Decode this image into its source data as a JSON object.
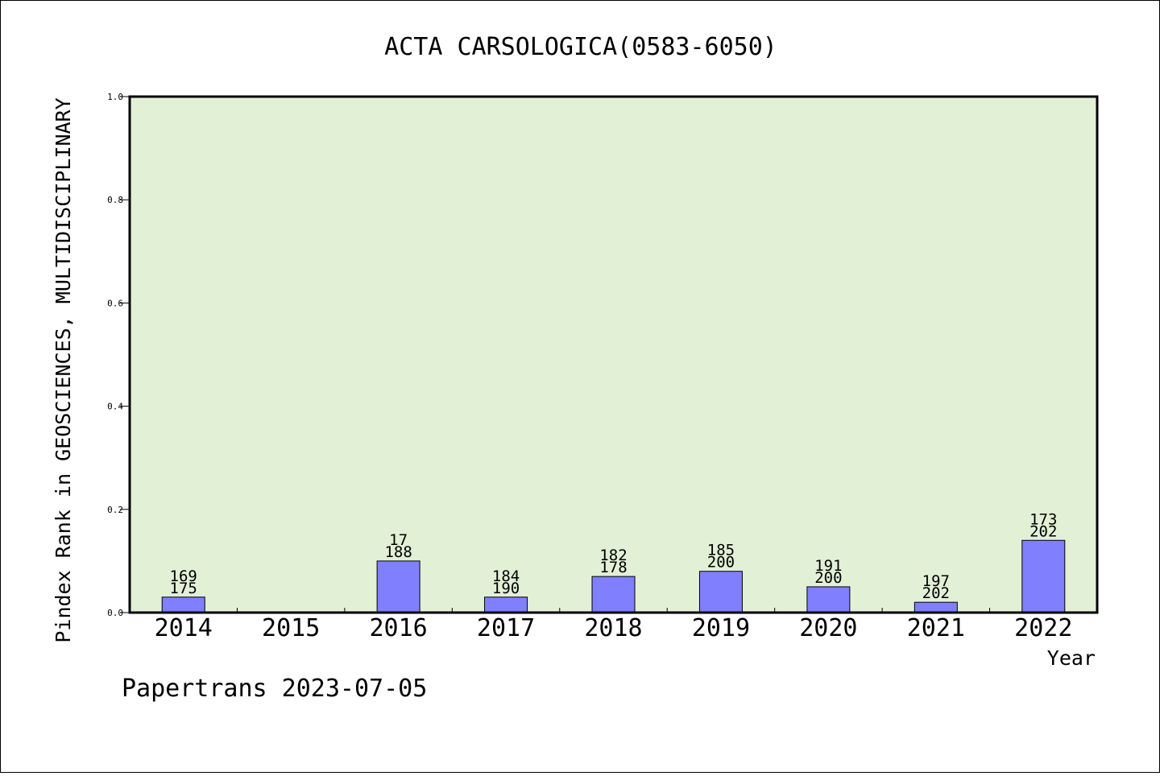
{
  "chart_data": {
    "type": "bar",
    "title": "ACTA CARSOLOGICA(0583-6050)",
    "xlabel": "Year",
    "ylabel": "Pindex Rank in GEOSCIENCES, MULTIDISCIPLINARY",
    "ylim": [
      0,
      1.0
    ],
    "yticks": [
      "0.0",
      "0.2",
      "0.4",
      "0.6",
      "0.8",
      "1.0"
    ],
    "categories": [
      "2014",
      "2015",
      "2016",
      "2017",
      "2018",
      "2019",
      "2020",
      "2021",
      "2022"
    ],
    "values": [
      0.03,
      0,
      0.1,
      0.03,
      0.07,
      0.08,
      0.05,
      0.02,
      0.14
    ],
    "labels_top": [
      "169",
      "",
      "17",
      "184",
      "182",
      "185",
      "191",
      "197",
      "173"
    ],
    "labels_bottom": [
      "175",
      "",
      "188",
      "190",
      "178",
      "200",
      "200",
      "202",
      "202"
    ],
    "grid": false,
    "colors": {
      "bar": "#8080ff",
      "plot_bg": "#e2f0d6",
      "border": "#000000"
    }
  },
  "footer": "Papertrans 2023-07-05"
}
